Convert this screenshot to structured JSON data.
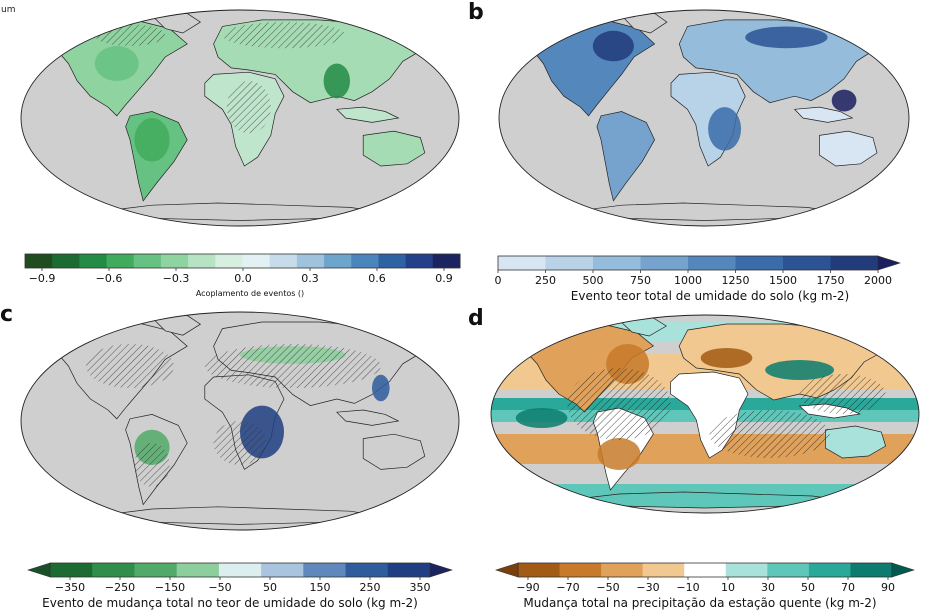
{
  "panels": [
    {
      "letter": "",
      "corner_text": "um",
      "colorbar": {
        "title": "Acoplamento de eventos ()",
        "ticks": [
          "−0.9",
          "−0.6",
          "−0.3",
          "0.0",
          "0.3",
          "0.6",
          "0.9"
        ],
        "colors": [
          "#1f4d1f",
          "#1b6b33",
          "#238b45",
          "#41ab5d",
          "#66c282",
          "#8fd3a0",
          "#b6e3c3",
          "#d6efe0",
          "#e4f1f4",
          "#c6dcea",
          "#9fc3dc",
          "#6ea5cc",
          "#4a86bb",
          "#2f62a3",
          "#24408a",
          "#1c2460"
        ],
        "extend": "none"
      }
    },
    {
      "letter": "b",
      "colorbar": {
        "title": "Evento teor total de umidade do solo (kg m-2)",
        "ticks": [
          "0",
          "250",
          "500",
          "750",
          "1000",
          "1250",
          "1500",
          "1750",
          "2000"
        ],
        "colors": [
          "#d7e6f2",
          "#b8d2e8",
          "#96bcdb",
          "#75a3cd",
          "#5488bd",
          "#3a6ca9",
          "#2c5394",
          "#223c7b"
        ],
        "extend": "max",
        "extend_color": "#1a1f5e"
      }
    },
    {
      "letter": "c",
      "colorbar": {
        "title": "Evento de mudança total no teor de umidade do solo (kg m-2)",
        "ticks": [
          "−350",
          "−250",
          "−150",
          "−50",
          "50",
          "150",
          "250",
          "350"
        ],
        "colors": [
          "#1b6b33",
          "#2f8f4a",
          "#52aa6a",
          "#8ccf9c",
          "#dcefee",
          "#a9c4de",
          "#5f89bd",
          "#2e5c9c",
          "#203f83"
        ],
        "extend": "both",
        "extend_colors": [
          "#19502a",
          "#1c2460"
        ]
      }
    },
    {
      "letter": "d",
      "colorbar": {
        "title": "Mudança total na precipitação da estação quente (kg m-2)",
        "ticks": [
          "−90",
          "−70",
          "−50",
          "−30",
          "−10",
          "10",
          "30",
          "50",
          "70",
          "90"
        ],
        "colors": [
          "#a25a14",
          "#c77a2a",
          "#e0a15a",
          "#f1c890",
          "#ffffff",
          "#a8e2da",
          "#5fc7ba",
          "#2aa99a",
          "#0b7c6f"
        ],
        "extend": "both",
        "extend_colors": [
          "#7a3f0d",
          "#005a4e"
        ]
      }
    }
  ]
}
